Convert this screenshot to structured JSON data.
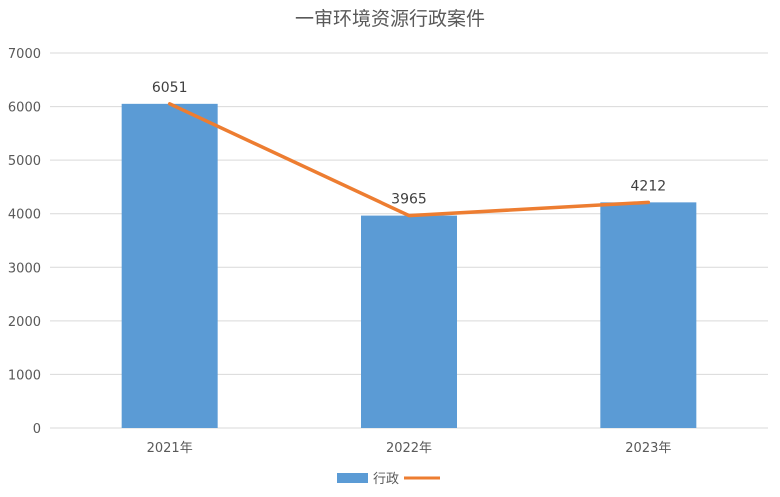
{
  "chart_data": {
    "type": "bar",
    "title": "一审环境资源行政案件",
    "categories": [
      "2021年",
      "2022年",
      "2023年"
    ],
    "ylim": [
      0,
      7000
    ],
    "y_ticks": [
      0,
      1000,
      2000,
      3000,
      4000,
      5000,
      6000,
      7000
    ],
    "grid": true,
    "legend_position": "bottom",
    "series": [
      {
        "name": "行政",
        "kind": "bar",
        "color": "#5b9bd5",
        "values": [
          6051,
          3965,
          4212
        ]
      },
      {
        "name": "",
        "kind": "line",
        "color": "#ed7d31",
        "values": [
          6051,
          3965,
          4212
        ]
      }
    ],
    "data_labels": [
      "6051",
      "3965",
      "4212"
    ]
  }
}
